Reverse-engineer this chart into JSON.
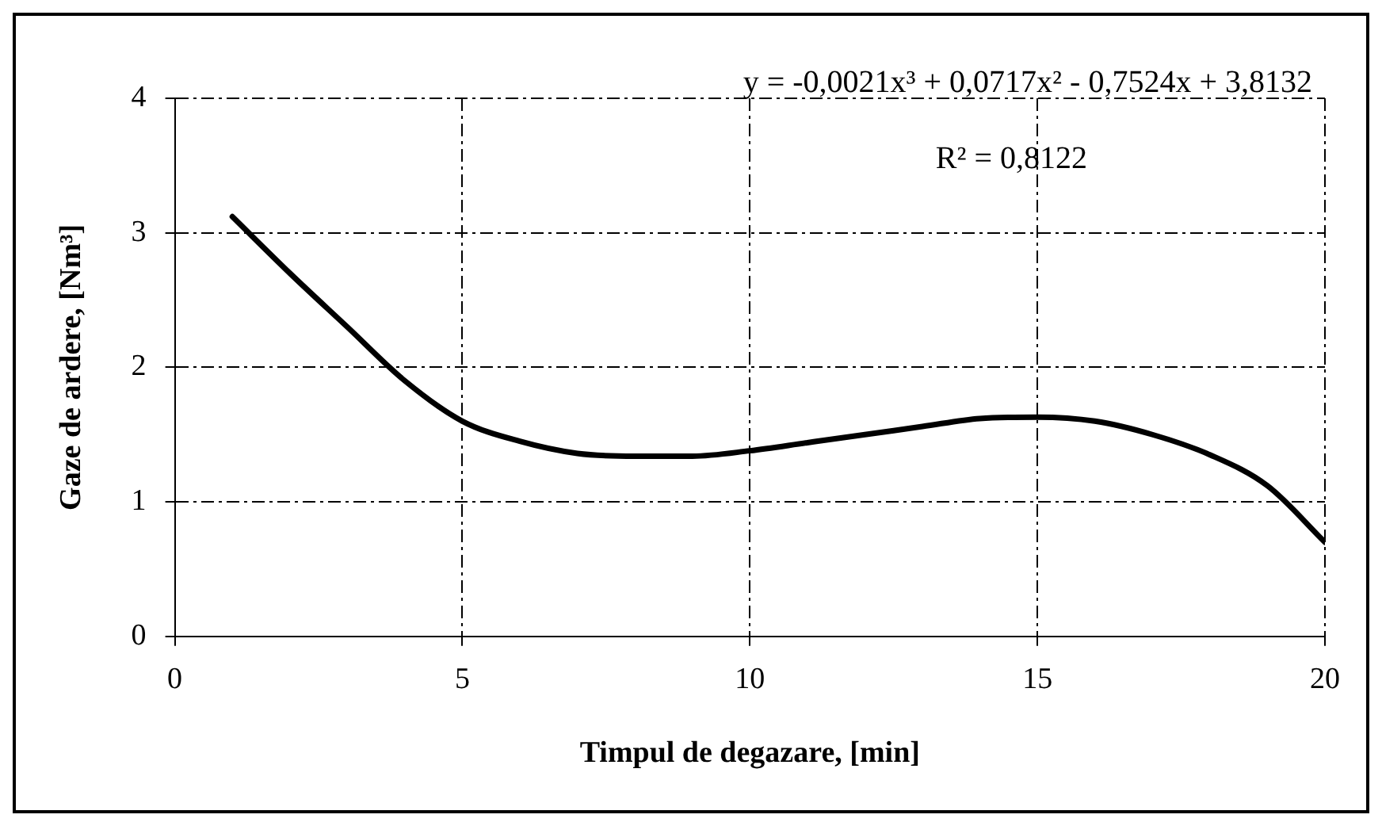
{
  "chart_data": {
    "type": "line",
    "xlabel": "Timpul de degazare, [min]",
    "ylabel": "Gaze de ardere, [Nm³]",
    "x": [
      1,
      2,
      3,
      4,
      5,
      6,
      7,
      8,
      9,
      10,
      11,
      12,
      13,
      14,
      15,
      16,
      17,
      18,
      19,
      20
    ],
    "series": [
      {
        "color": "#000000",
        "values": [
          3.12,
          2.7,
          2.3,
          1.9,
          1.6,
          1.45,
          1.36,
          1.34,
          1.34,
          1.38,
          1.44,
          1.5,
          1.56,
          1.62,
          1.63,
          1.6,
          1.5,
          1.35,
          1.12,
          0.7
        ]
      }
    ],
    "xlim": [
      0,
      20
    ],
    "xticks": [
      0,
      5,
      10,
      15,
      20
    ],
    "ylim": [
      0,
      4
    ],
    "yticks": [
      0,
      1,
      2,
      3,
      4
    ],
    "grid": true,
    "legend": false,
    "marker": "none",
    "line_style": "solid",
    "annotations": [
      "y = -0,0021x³ + 0,0717x² - 0,7524x + 3,8132",
      "R² = 0,8122"
    ]
  }
}
